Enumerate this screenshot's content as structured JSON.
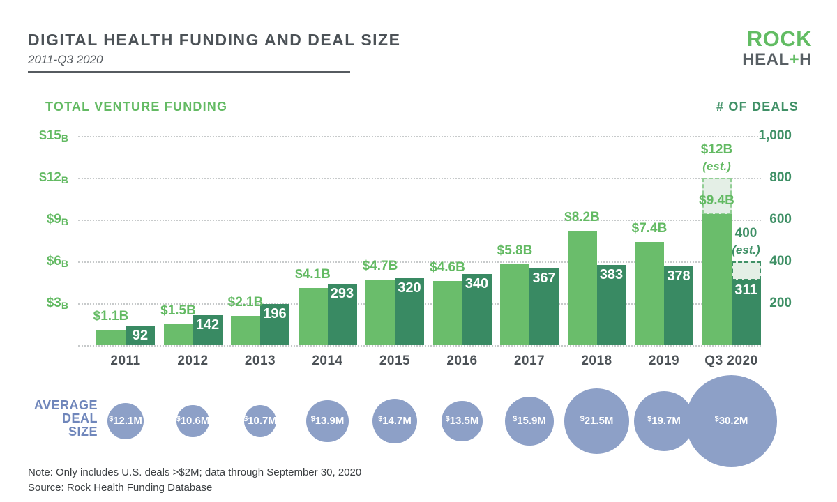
{
  "header": {
    "title": "DIGITAL HEALTH FUNDING AND DEAL SIZE",
    "subtitle": "2011-Q3 2020"
  },
  "logo": {
    "line1": "ROCK",
    "heal": "HEAL",
    "plus": "+",
    "h": "H"
  },
  "left_axis_title": "TOTAL VENTURE FUNDING",
  "right_axis_title": "# OF DEALS",
  "avg_label_lines": [
    "AVERAGE",
    "DEAL",
    "SIZE"
  ],
  "footer": {
    "note": "Note: Only includes U.S. deals >$2M; data through September 30, 2020",
    "source": "Source: Rock Health Funding Database"
  },
  "colors": {
    "funding_bar": "#6abd6b",
    "deals_bar": "#398a63",
    "funding_text": "#63ba63",
    "deals_text": "#3f9066",
    "estimate_fill": "#e4efe6",
    "bubble": "#8da0c7",
    "avg_label": "#6f86bb",
    "title_gray": "#4c5257"
  },
  "chart_data": {
    "type": "bar",
    "title": "DIGITAL HEALTH FUNDING AND DEAL SIZE",
    "subtitle": "2011-Q3 2020",
    "categories": [
      "2011",
      "2012",
      "2013",
      "2014",
      "2015",
      "2016",
      "2017",
      "2018",
      "2019",
      "Q3 2020"
    ],
    "series": [
      {
        "name": "Total Venture Funding ($B)",
        "values": [
          1.1,
          1.5,
          2.1,
          4.1,
          4.7,
          4.6,
          5.8,
          8.2,
          7.4,
          9.4
        ],
        "labels": [
          "$1.1B",
          "$1.5B",
          "$2.1B",
          "$4.1B",
          "$4.7B",
          "$4.6B",
          "$5.8B",
          "$8.2B",
          "$7.4B",
          "$9.4B"
        ],
        "estimate": {
          "category": "Q3 2020",
          "value": 12,
          "label": "$12B",
          "suffix": "(est.)"
        }
      },
      {
        "name": "# of Deals",
        "values": [
          92,
          142,
          196,
          293,
          320,
          340,
          367,
          383,
          378,
          311
        ],
        "labels": [
          "92",
          "142",
          "196",
          "293",
          "320",
          "340",
          "367",
          "383",
          "378",
          "311"
        ],
        "estimate": {
          "category": "Q3 2020",
          "value": 400,
          "label": "400",
          "suffix": "(est.)"
        }
      },
      {
        "name": "Average Deal Size ($M)",
        "values": [
          12.1,
          10.6,
          10.7,
          13.9,
          14.7,
          13.5,
          15.9,
          21.5,
          19.7,
          30.2
        ],
        "labels": [
          "$12.1M",
          "$10.6M",
          "$10.7M",
          "$13.9M",
          "$14.7M",
          "$13.5M",
          "$15.9M",
          "$21.5M",
          "$19.7M",
          "$30.2M"
        ]
      }
    ],
    "left_axis": {
      "label": "TOTAL VENTURE FUNDING",
      "ticks": [
        "$15B",
        "$12B",
        "$9B",
        "$6B",
        "$3B"
      ],
      "tick_values": [
        15,
        12,
        9,
        6,
        3
      ],
      "min": 0,
      "max": 15,
      "unit": "$B",
      "grid": "dotted"
    },
    "right_axis": {
      "label": "# OF DEALS",
      "ticks": [
        "1,000",
        "800",
        "600",
        "400",
        "200"
      ],
      "tick_values": [
        1000,
        800,
        600,
        400,
        200
      ],
      "min": 0,
      "max": 1000
    },
    "legend_position": "none"
  }
}
